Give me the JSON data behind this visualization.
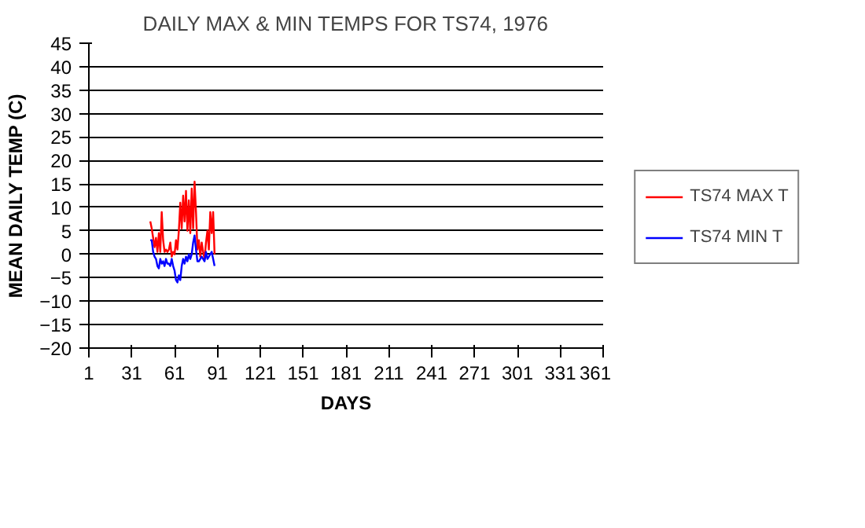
{
  "chart_data": {
    "type": "line",
    "title": "DAILY MAX & MIN TEMPS FOR TS74, 1976",
    "xlabel": "DAYS",
    "ylabel": "MEAN DAILY TEMP (C)",
    "x": [
      44,
      45,
      46,
      47,
      48,
      49,
      50,
      51,
      52,
      53,
      54,
      55,
      56,
      57,
      58,
      59,
      60,
      61,
      62,
      63,
      64,
      65,
      66,
      67,
      68,
      69,
      70,
      71,
      72,
      73,
      74,
      75,
      76,
      77,
      78,
      79,
      80,
      81,
      82,
      83,
      84,
      85,
      86,
      87,
      88,
      89
    ],
    "series": [
      {
        "name": "TS74 MAX T",
        "color": "#ff0000",
        "values": [
          7,
          5.5,
          3.5,
          1.5,
          3.5,
          0.5,
          4.5,
          0.5,
          9,
          3,
          0.5,
          1,
          0.5,
          1,
          2.5,
          -0.5,
          0.5,
          0,
          3,
          1,
          5,
          11,
          5.5,
          12.5,
          7,
          13.5,
          5,
          11.5,
          4.5,
          14,
          5.5,
          15.5,
          9,
          1,
          3,
          -0.5,
          2.5,
          0.5,
          -1,
          2.5,
          5,
          1,
          9,
          4.5,
          9,
          0
        ]
      },
      {
        "name": "TS74 MIN T",
        "color": "#0000ff",
        "values": [
          3,
          3,
          0.5,
          -0.5,
          -1,
          -2.5,
          -3,
          -1,
          -2,
          -1.5,
          -2.5,
          -1,
          -2,
          -2,
          -2.5,
          -1,
          -2.5,
          -3.5,
          -5.5,
          -6,
          -4.5,
          -5.5,
          -2.5,
          -1,
          -2,
          -0.5,
          -1.5,
          0,
          -1,
          0,
          2.5,
          4,
          1,
          -1.5,
          -1.5,
          -1,
          -0.5,
          -1,
          -1.5,
          0.5,
          -1,
          -0.5,
          0,
          0.5,
          -1,
          -2.5
        ]
      }
    ],
    "xlim": [
      1,
      361
    ],
    "xticks": [
      1,
      31,
      61,
      91,
      121,
      151,
      181,
      211,
      241,
      271,
      301,
      331,
      361
    ],
    "ylim": [
      -20,
      45
    ],
    "yticks": [
      -20,
      -15,
      -10,
      -5,
      0,
      5,
      10,
      15,
      20,
      25,
      30,
      35,
      40,
      45
    ],
    "grid": "y",
    "legend": "right",
    "marker": "none",
    "line_style": "solid"
  }
}
